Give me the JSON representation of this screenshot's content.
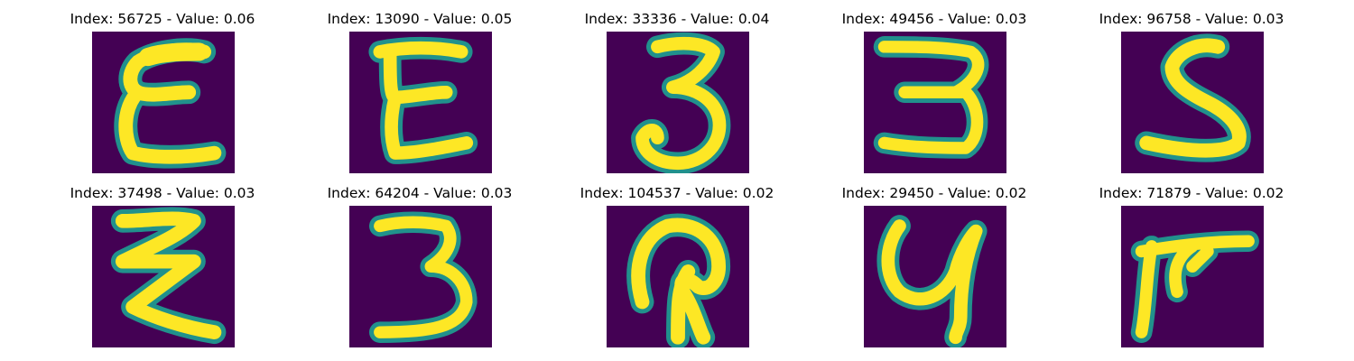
{
  "panels": [
    {
      "title": "Index: 56725 - Value: 0.06"
    },
    {
      "title": "Index: 13090 - Value: 0.05"
    },
    {
      "title": "Index: 33336 - Value: 0.04"
    },
    {
      "title": "Index: 49456 - Value: 0.03"
    },
    {
      "title": "Index: 96758 - Value: 0.03"
    },
    {
      "title": "Index: 37498 - Value: 0.03"
    },
    {
      "title": "Index: 64204 - Value: 0.03"
    },
    {
      "title": "Index: 104537 - Value: 0.02"
    },
    {
      "title": "Index: 29450 - Value: 0.02"
    },
    {
      "title": "Index: 71879 - Value: 0.02"
    }
  ],
  "colors": {
    "background": "#440154",
    "stroke_edge": "#21918c",
    "stroke_core": "#fde725"
  }
}
